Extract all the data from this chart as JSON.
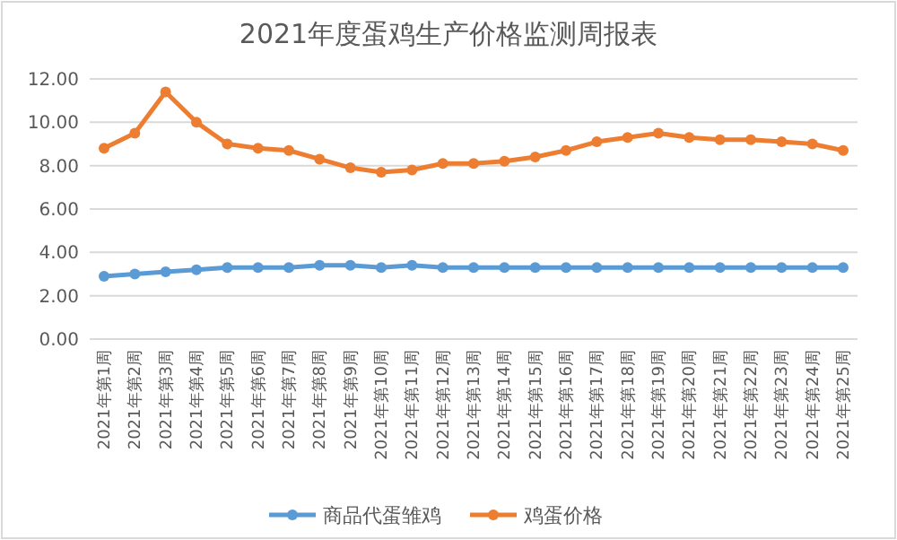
{
  "chart_data": {
    "type": "line",
    "title": "2021年度蛋鸡生产价格监测周报表",
    "categories": [
      "2021年第1周",
      "2021年第2周",
      "2021年第3周",
      "2021年第4周",
      "2021年第5周",
      "2021年第6周",
      "2021年第7周",
      "2021年第8周",
      "2021年第9周",
      "2021年第10周",
      "2021年第11周",
      "2021年第12周",
      "2021年第13周",
      "2021年第14周",
      "2021年第15周",
      "2021年第16周",
      "2021年第17周",
      "2021年第18周",
      "2021年第19周",
      "2021年第20周",
      "2021年第21周",
      "2021年第22周",
      "2021年第23周",
      "2021年第24周",
      "2021年第25周"
    ],
    "series": [
      {
        "name": "商品代蛋雏鸡",
        "color": "#5b9bd5",
        "values": [
          2.9,
          3.0,
          3.1,
          3.2,
          3.3,
          3.3,
          3.3,
          3.4,
          3.4,
          3.3,
          3.4,
          3.3,
          3.3,
          3.3,
          3.3,
          3.3,
          3.3,
          3.3,
          3.3,
          3.3,
          3.3,
          3.3,
          3.3,
          3.3,
          3.3
        ]
      },
      {
        "name": "鸡蛋价格",
        "color": "#ed7d31",
        "values": [
          8.8,
          9.5,
          11.4,
          10.0,
          9.0,
          8.8,
          8.7,
          8.3,
          7.9,
          7.7,
          7.8,
          8.1,
          8.1,
          8.2,
          8.4,
          8.7,
          9.1,
          9.3,
          9.5,
          9.3,
          9.2,
          9.2,
          9.1,
          9.0,
          8.7
        ]
      }
    ],
    "ylim": [
      0,
      12
    ],
    "yticks": [
      {
        "value": 0,
        "label": "0.00"
      },
      {
        "value": 2,
        "label": "2.00"
      },
      {
        "value": 4,
        "label": "4.00"
      },
      {
        "value": 6,
        "label": "6.00"
      },
      {
        "value": 8,
        "label": "8.00"
      },
      {
        "value": 10,
        "label": "10.00"
      },
      {
        "value": 12,
        "label": "12.00"
      }
    ],
    "grid": "y",
    "legend": "bottom",
    "marker": "circle",
    "line_style": "solid"
  }
}
